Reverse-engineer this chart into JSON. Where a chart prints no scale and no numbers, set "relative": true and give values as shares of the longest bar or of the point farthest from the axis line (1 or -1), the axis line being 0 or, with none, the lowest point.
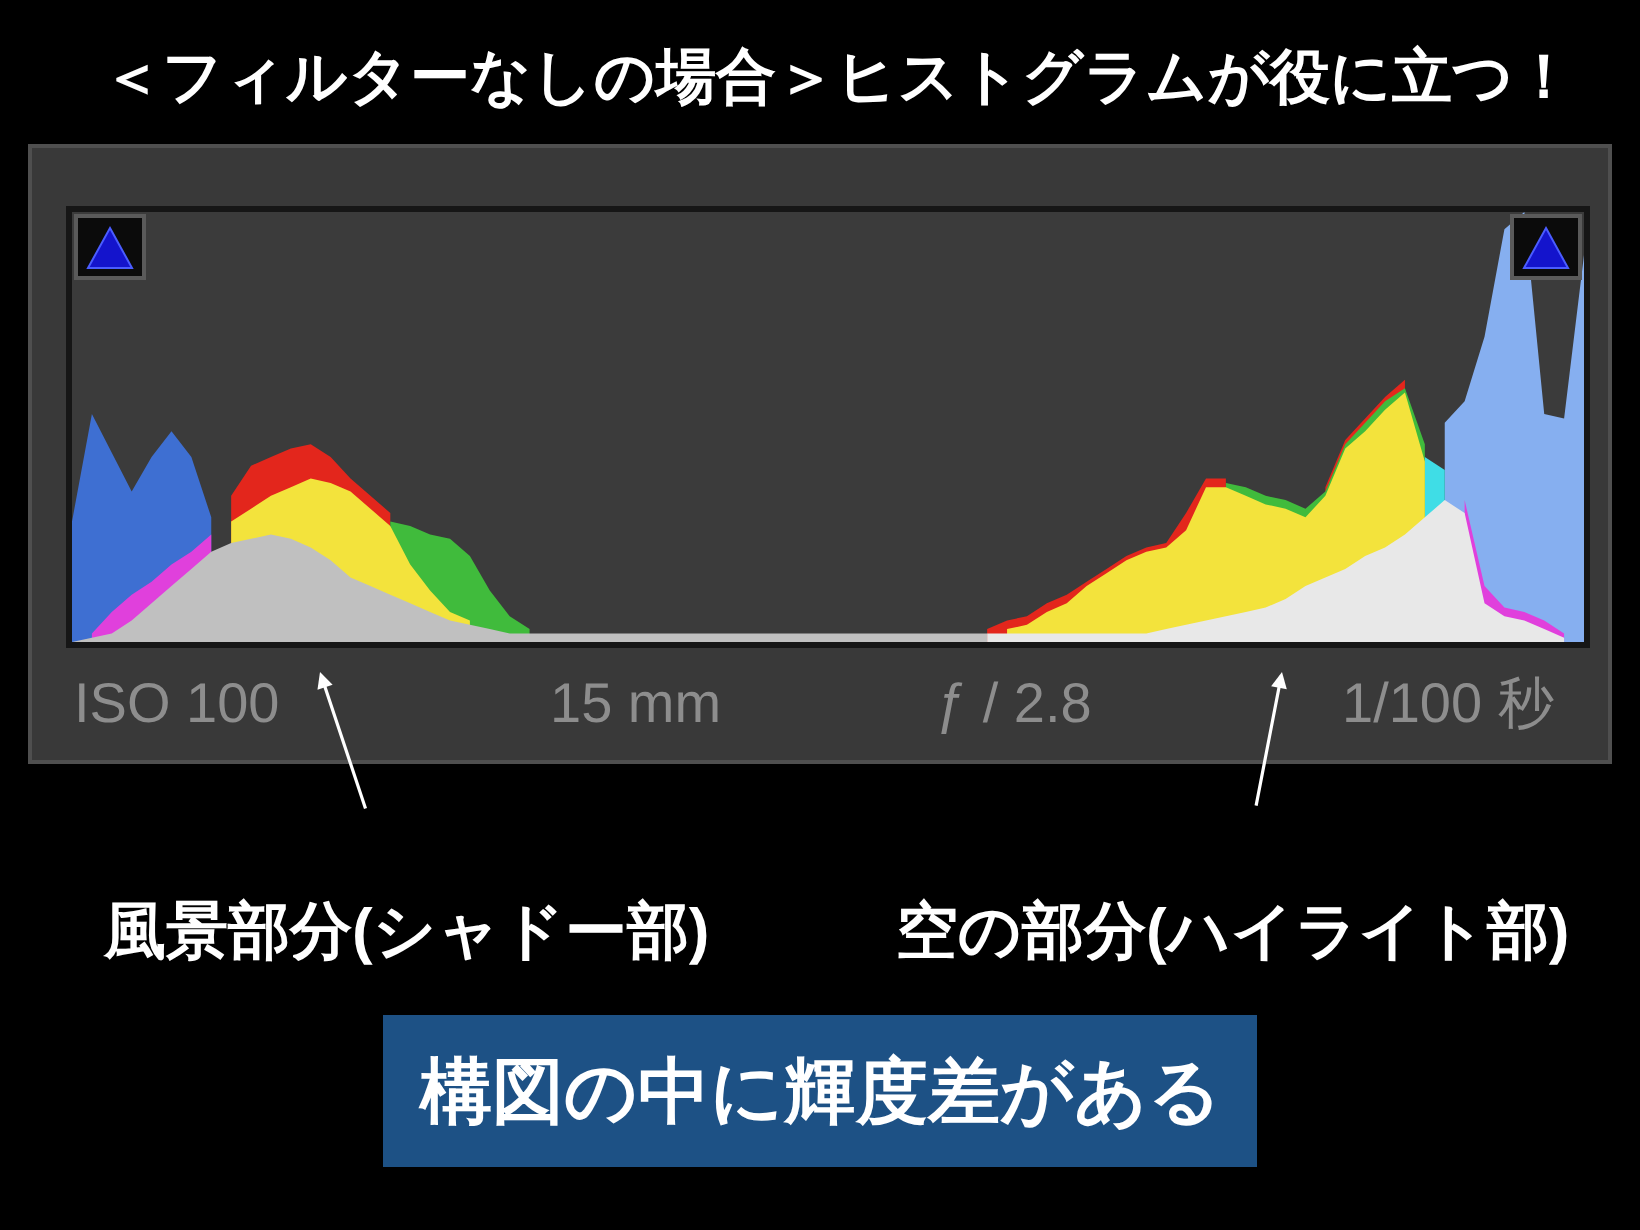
{
  "chart_data": {
    "type": "area",
    "relative": true,
    "title": "＜フィルターなしの場合＞ヒストグラムが役に立つ！",
    "annotations": [
      "ISO 100",
      "15 mm",
      "ƒ / 2.8",
      "1/100 秒",
      "風景部分(シャドー部)",
      "空の部分(ハイライト部)",
      "構図の中に輝度差がある"
    ],
    "categories": [
      null,
      null,
      null,
      null,
      null,
      null,
      null,
      null,
      null,
      null,
      null,
      null,
      null,
      null,
      null,
      null,
      null,
      null,
      null,
      null,
      null,
      null,
      null,
      null,
      null,
      null,
      null,
      null,
      null,
      null,
      null,
      null,
      null,
      null,
      null,
      null,
      null,
      null,
      null,
      null,
      null,
      null,
      null,
      null,
      null,
      null,
      null,
      null,
      null,
      null,
      null,
      null,
      null,
      null,
      null,
      null,
      null,
      null,
      null,
      null,
      null,
      null,
      null,
      null,
      null,
      null,
      null,
      null,
      null,
      null,
      null,
      null,
      null,
      null,
      null,
      null,
      null
    ],
    "series": [
      {
        "color": "#3e6fd2",
        "values": [
          0.28,
          0.53,
          0.44,
          0.35,
          0.43,
          0.49,
          0.43,
          0.29,
          null,
          null,
          null,
          null,
          null,
          null,
          null,
          null,
          null,
          null,
          null,
          null,
          null,
          null,
          null,
          null,
          null,
          null,
          null,
          null,
          null,
          null,
          null,
          null,
          null,
          null,
          null,
          null,
          null,
          null,
          null,
          null,
          null,
          null,
          null,
          null,
          null,
          null,
          null,
          null,
          null,
          null,
          null,
          null,
          null,
          null,
          null,
          null,
          null,
          null,
          null,
          null,
          null,
          null,
          null,
          null,
          null,
          null,
          null,
          null,
          null,
          null,
          null,
          null,
          null,
          null,
          null,
          null,
          null
        ]
      },
      {
        "color": "#86aff0",
        "values": [
          null,
          null,
          null,
          null,
          null,
          null,
          null,
          null,
          null,
          null,
          null,
          null,
          null,
          null,
          null,
          null,
          null,
          null,
          null,
          null,
          null,
          null,
          null,
          null,
          null,
          null,
          null,
          null,
          null,
          null,
          null,
          null,
          null,
          null,
          null,
          null,
          null,
          null,
          null,
          null,
          null,
          null,
          null,
          null,
          null,
          null,
          null,
          null,
          null,
          null,
          null,
          null,
          null,
          null,
          null,
          null,
          null,
          null,
          null,
          null,
          null,
          null,
          null,
          null,
          null,
          null,
          null,
          null,
          null,
          0.51,
          0.56,
          0.71,
          0.96,
          1.0,
          0.53,
          0.52,
          0.9
        ]
      },
      {
        "color": "#e3261c",
        "values": [
          null,
          null,
          null,
          null,
          null,
          null,
          null,
          null,
          0.34,
          0.41,
          0.43,
          0.45,
          0.46,
          0.43,
          0.38,
          0.34,
          0.3,
          null,
          null,
          null,
          null,
          null,
          null,
          null,
          null,
          null,
          null,
          null,
          null,
          null,
          null,
          null,
          null,
          null,
          null,
          null,
          null,
          null,
          null,
          null,
          null,
          null,
          null,
          null,
          null,
          null,
          0.03,
          0.05,
          0.06,
          0.09,
          0.11,
          0.14,
          0.17,
          0.2,
          0.22,
          0.23,
          0.3,
          0.38,
          0.38,
          null,
          null,
          null,
          null,
          0.36,
          0.47,
          0.52,
          0.57,
          0.61,
          null,
          null,
          null,
          null,
          null,
          null,
          null,
          null,
          null
        ]
      },
      {
        "color": "#40bb3c",
        "values": [
          null,
          null,
          null,
          null,
          null,
          null,
          null,
          null,
          null,
          null,
          null,
          null,
          null,
          null,
          null,
          null,
          0.28,
          0.27,
          0.25,
          0.24,
          0.2,
          0.12,
          0.06,
          0.03,
          null,
          null,
          null,
          null,
          null,
          null,
          null,
          null,
          null,
          null,
          null,
          null,
          null,
          null,
          null,
          null,
          null,
          null,
          null,
          null,
          null,
          null,
          null,
          null,
          null,
          null,
          null,
          null,
          null,
          null,
          null,
          null,
          null,
          null,
          0.37,
          0.36,
          0.34,
          0.33,
          0.31,
          0.35,
          0.46,
          0.51,
          0.56,
          0.59,
          0.46,
          null,
          null,
          null,
          null,
          null,
          null,
          null,
          null
        ]
      },
      {
        "color": "#3fdde6",
        "values": [
          null,
          null,
          null,
          null,
          null,
          null,
          null,
          null,
          null,
          null,
          null,
          null,
          null,
          null,
          null,
          null,
          null,
          null,
          null,
          null,
          null,
          null,
          null,
          null,
          null,
          null,
          null,
          null,
          null,
          null,
          null,
          null,
          null,
          null,
          null,
          null,
          null,
          null,
          null,
          null,
          null,
          null,
          null,
          null,
          null,
          null,
          null,
          null,
          null,
          null,
          null,
          null,
          null,
          null,
          null,
          null,
          null,
          null,
          null,
          null,
          null,
          null,
          null,
          null,
          null,
          null,
          null,
          null,
          0.43,
          0.4,
          null,
          null,
          null,
          null,
          null,
          null,
          null
        ]
      },
      {
        "color": "#e040dc",
        "values": [
          null,
          0.02,
          0.07,
          0.11,
          0.14,
          0.18,
          0.21,
          0.25,
          null,
          null,
          null,
          null,
          null,
          null,
          null,
          null,
          null,
          null,
          null,
          null,
          null,
          null,
          null,
          null,
          null,
          null,
          null,
          null,
          null,
          null,
          null,
          null,
          null,
          null,
          null,
          null,
          null,
          null,
          null,
          null,
          null,
          null,
          null,
          null,
          null,
          null,
          null,
          null,
          null,
          null,
          null,
          null,
          null,
          null,
          null,
          null,
          null,
          null,
          null,
          null,
          null,
          null,
          null,
          null,
          null,
          null,
          null,
          null,
          null,
          null,
          0.33,
          0.13,
          0.08,
          0.07,
          0.05,
          0.02,
          null
        ]
      },
      {
        "color": "#f3e33c",
        "values": [
          null,
          null,
          null,
          null,
          null,
          null,
          null,
          null,
          0.28,
          0.31,
          0.34,
          0.36,
          0.38,
          0.37,
          0.35,
          0.31,
          0.27,
          0.18,
          0.12,
          0.07,
          0.05,
          null,
          null,
          null,
          null,
          null,
          null,
          null,
          null,
          null,
          null,
          null,
          null,
          null,
          null,
          null,
          null,
          null,
          null,
          null,
          null,
          null,
          null,
          null,
          null,
          null,
          null,
          0.03,
          0.04,
          0.07,
          0.09,
          0.13,
          0.16,
          0.19,
          0.21,
          0.22,
          0.26,
          0.36,
          0.36,
          0.34,
          0.32,
          0.31,
          0.29,
          0.34,
          0.45,
          0.49,
          0.54,
          0.58,
          0.42,
          null,
          null,
          null,
          null,
          null,
          null,
          null,
          null
        ]
      },
      {
        "color": "#c0c0c0",
        "values": [
          0,
          0.01,
          0.02,
          0.05,
          0.09,
          0.13,
          0.17,
          0.21,
          0.23,
          0.24,
          0.25,
          0.24,
          0.22,
          0.19,
          0.15,
          0.13,
          0.11,
          0.09,
          0.07,
          0.05,
          0.04,
          0.03,
          0.02,
          0.02,
          0.02,
          0.02,
          0.02,
          0.02,
          0.02,
          0.02,
          0.02,
          0.02,
          0.02,
          0.02,
          0.02,
          0.02,
          0.02,
          0.02,
          0.02,
          0.02,
          0.02,
          0.02,
          0.02,
          0.02,
          0.02,
          0.02,
          0.02,
          null,
          null,
          null,
          null,
          null,
          null,
          null,
          null,
          null,
          null,
          null,
          null,
          null,
          null,
          null,
          null,
          null,
          null,
          null,
          null,
          null,
          null,
          null,
          null,
          null,
          null,
          null,
          null,
          null,
          null
        ]
      },
      {
        "color": "#e8e8e8",
        "values": [
          null,
          null,
          null,
          null,
          null,
          null,
          null,
          null,
          null,
          null,
          null,
          null,
          null,
          null,
          null,
          null,
          null,
          null,
          null,
          null,
          null,
          null,
          null,
          null,
          null,
          null,
          null,
          null,
          null,
          null,
          null,
          null,
          null,
          null,
          null,
          null,
          null,
          null,
          null,
          null,
          null,
          null,
          null,
          null,
          null,
          null,
          0.02,
          0.02,
          0.02,
          0.02,
          0.02,
          0.02,
          0.02,
          0.02,
          0.02,
          0.03,
          0.04,
          0.05,
          0.06,
          0.07,
          0.08,
          0.1,
          0.13,
          0.15,
          0.17,
          0.2,
          0.22,
          0.25,
          0.29,
          0.33,
          0.3,
          0.09,
          0.06,
          0.05,
          0.03,
          0.01,
          null
        ]
      }
    ]
  }
}
